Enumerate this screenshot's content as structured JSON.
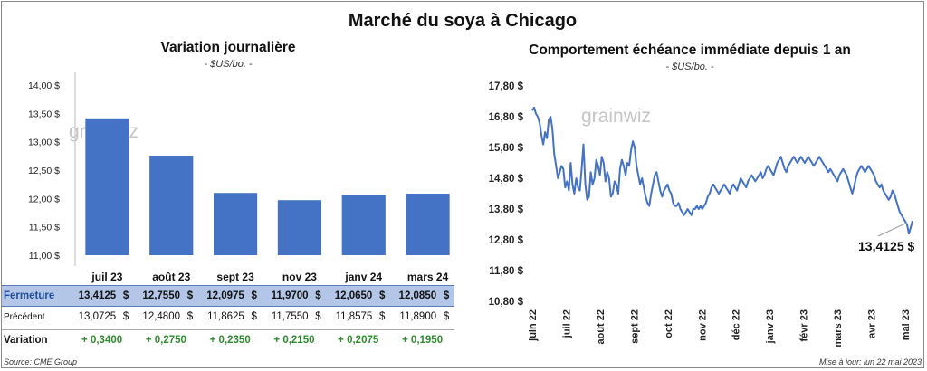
{
  "title": "Marché du soya à Chicago",
  "left": {
    "title": "Variation  journalière",
    "subtitle": "- $US/bo. -",
    "watermark": "grainwiz"
  },
  "right": {
    "title": "Comportement  échéance immédiate depuis 1 an",
    "subtitle": "- $US/bo. -",
    "watermark": "grainwiz",
    "last_label": "13,4125 $"
  },
  "table": {
    "rows": [
      {
        "label": "Fermeture",
        "values": [
          "13,4125",
          "12,7550",
          "12,0975",
          "11,9700",
          "12,0650",
          "12,0850"
        ],
        "unit": "$"
      },
      {
        "label": "Précédent",
        "values": [
          "13,0725",
          "12,4800",
          "11,8625",
          "11,7550",
          "11,8575",
          "11,8900"
        ],
        "unit": "$"
      },
      {
        "label": "Variation",
        "values": [
          "+ 0,3400",
          "+ 0,2750",
          "+ 0,2350",
          "+ 0,2150",
          "+ 0,2075",
          "+ 0,1950"
        ]
      }
    ]
  },
  "footer": {
    "source": "Source: CME Group",
    "updated": "Mise à jour: lun 22 mai 2023"
  },
  "colors": {
    "bar": "#4472c4",
    "line": "#4472c4",
    "positive": "#2e8b2e",
    "row_highlight": "#b4c6e7"
  },
  "chart_data": [
    {
      "type": "bar",
      "categories": [
        "juil 23",
        "août 23",
        "sept 23",
        "nov 23",
        "janv 24",
        "mars 24"
      ],
      "values": [
        13.4125,
        12.755,
        12.0975,
        11.97,
        12.065,
        12.085
      ],
      "title": "Variation  journalière",
      "ylabel": "",
      "ylim": [
        11.0,
        14.0
      ],
      "yticks": [
        "11,00 $",
        "11,50 $",
        "12,00 $",
        "12,50 $",
        "13,00 $",
        "13,50 $",
        "14,00 $"
      ],
      "grid": false
    },
    {
      "type": "line",
      "title": "Comportement  échéance immédiate depuis 1 an",
      "ylim": [
        10.8,
        17.8
      ],
      "yticks": [
        "10,80 $",
        "11,80 $",
        "12,80 $",
        "13,80 $",
        "14,80 $",
        "15,80 $",
        "16,80 $",
        "17,80 $"
      ],
      "xticks": [
        "juin 22",
        "juil 22",
        "août 22",
        "sept 22",
        "oct 22",
        "nov 22",
        "déc 22",
        "janv 23",
        "févr 23",
        "mars 23",
        "avr 23",
        "mai 23"
      ],
      "x_start": "2022-05-23",
      "x_end": "2023-05-22",
      "series": [
        {
          "values": [
            17.0,
            17.1,
            16.9,
            16.8,
            16.6,
            16.2,
            15.9,
            16.3,
            16.1,
            16.7,
            16.8,
            16.4,
            15.6,
            15.2,
            14.8,
            15.0,
            15.2,
            15.1,
            14.5,
            14.7,
            14.4,
            15.3,
            14.6,
            14.3,
            14.8,
            14.5,
            14.4,
            15.1,
            15.9,
            14.6,
            14.1,
            14.2,
            15.0,
            14.6,
            14.8,
            15.4,
            15.2,
            14.9,
            15.5,
            15.3,
            14.7,
            15.0,
            14.8,
            14.2,
            14.3,
            14.7,
            14.6,
            14.3,
            15.1,
            15.4,
            15.2,
            14.9,
            15.3,
            15.2,
            15.7,
            16.0,
            15.8,
            15.2,
            14.9,
            14.6,
            14.8,
            14.5,
            14.2,
            14.0,
            13.9,
            14.3,
            14.6,
            14.9,
            15.0,
            14.7,
            14.4,
            14.2,
            14.4,
            14.5,
            14.6,
            14.4,
            14.3,
            14.0,
            13.9,
            13.9,
            14.0,
            13.8,
            13.7,
            13.6,
            13.7,
            13.8,
            13.7,
            13.6,
            13.8,
            13.8,
            13.9,
            13.8,
            13.9,
            13.8,
            13.9,
            14.0,
            14.2,
            14.3,
            14.5,
            14.6,
            14.5,
            14.4,
            14.3,
            14.4,
            14.5,
            14.6,
            14.5,
            14.4,
            14.3,
            14.5,
            14.6,
            14.5,
            14.4,
            14.6,
            14.8,
            14.7,
            14.6,
            14.5,
            14.7,
            14.8,
            14.9,
            14.8,
            14.7,
            14.8,
            14.9,
            15.0,
            14.8,
            14.9,
            15.1,
            15.2,
            15.1,
            15.0,
            14.9,
            15.1,
            15.3,
            15.4,
            15.5,
            15.3,
            15.1,
            15.0,
            15.2,
            15.3,
            15.4,
            15.5,
            15.4,
            15.3,
            15.4,
            15.5,
            15.4,
            15.3,
            15.4,
            15.5,
            15.4,
            15.3,
            15.2,
            15.3,
            15.4,
            15.5,
            15.4,
            15.3,
            15.2,
            15.1,
            15.0,
            15.1,
            15.0,
            14.9,
            14.8,
            14.7,
            14.9,
            15.0,
            15.1,
            15.0,
            14.9,
            14.7,
            14.5,
            14.3,
            14.5,
            14.8,
            15.0,
            15.1,
            15.2,
            15.1,
            15.0,
            15.1,
            15.2,
            15.1,
            15.0,
            14.9,
            14.7,
            14.6,
            14.5,
            14.6,
            14.4,
            14.3,
            14.2,
            14.1,
            14.2,
            14.4,
            14.3,
            14.1,
            13.9,
            13.7,
            13.6,
            13.5,
            13.4,
            13.3,
            13.0,
            13.2,
            13.4125
          ]
        }
      ],
      "annotation": "13,4125 $"
    }
  ]
}
